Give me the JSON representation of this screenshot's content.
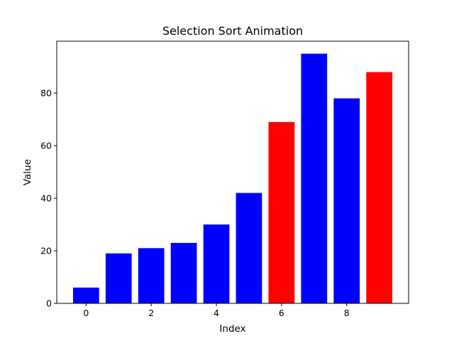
{
  "chart_data": {
    "type": "bar",
    "title": "Selection Sort Animation",
    "xlabel": "Index",
    "ylabel": "Value",
    "x": [
      0,
      1,
      2,
      3,
      4,
      5,
      6,
      7,
      8,
      9
    ],
    "values": [
      6,
      19,
      21,
      23,
      30,
      42,
      69,
      95,
      78,
      88
    ],
    "bar_colors": [
      "#0000ff",
      "#0000ff",
      "#0000ff",
      "#0000ff",
      "#0000ff",
      "#0000ff",
      "#ff0000",
      "#0000ff",
      "#0000ff",
      "#ff0000"
    ],
    "xticks": [
      "0",
      "2",
      "4",
      "6",
      "8"
    ],
    "yticks": [
      "0",
      "20",
      "40",
      "60",
      "80"
    ],
    "xlim": [
      -0.9,
      9.9
    ],
    "ylim": [
      0,
      99.75
    ],
    "grid": false
  }
}
